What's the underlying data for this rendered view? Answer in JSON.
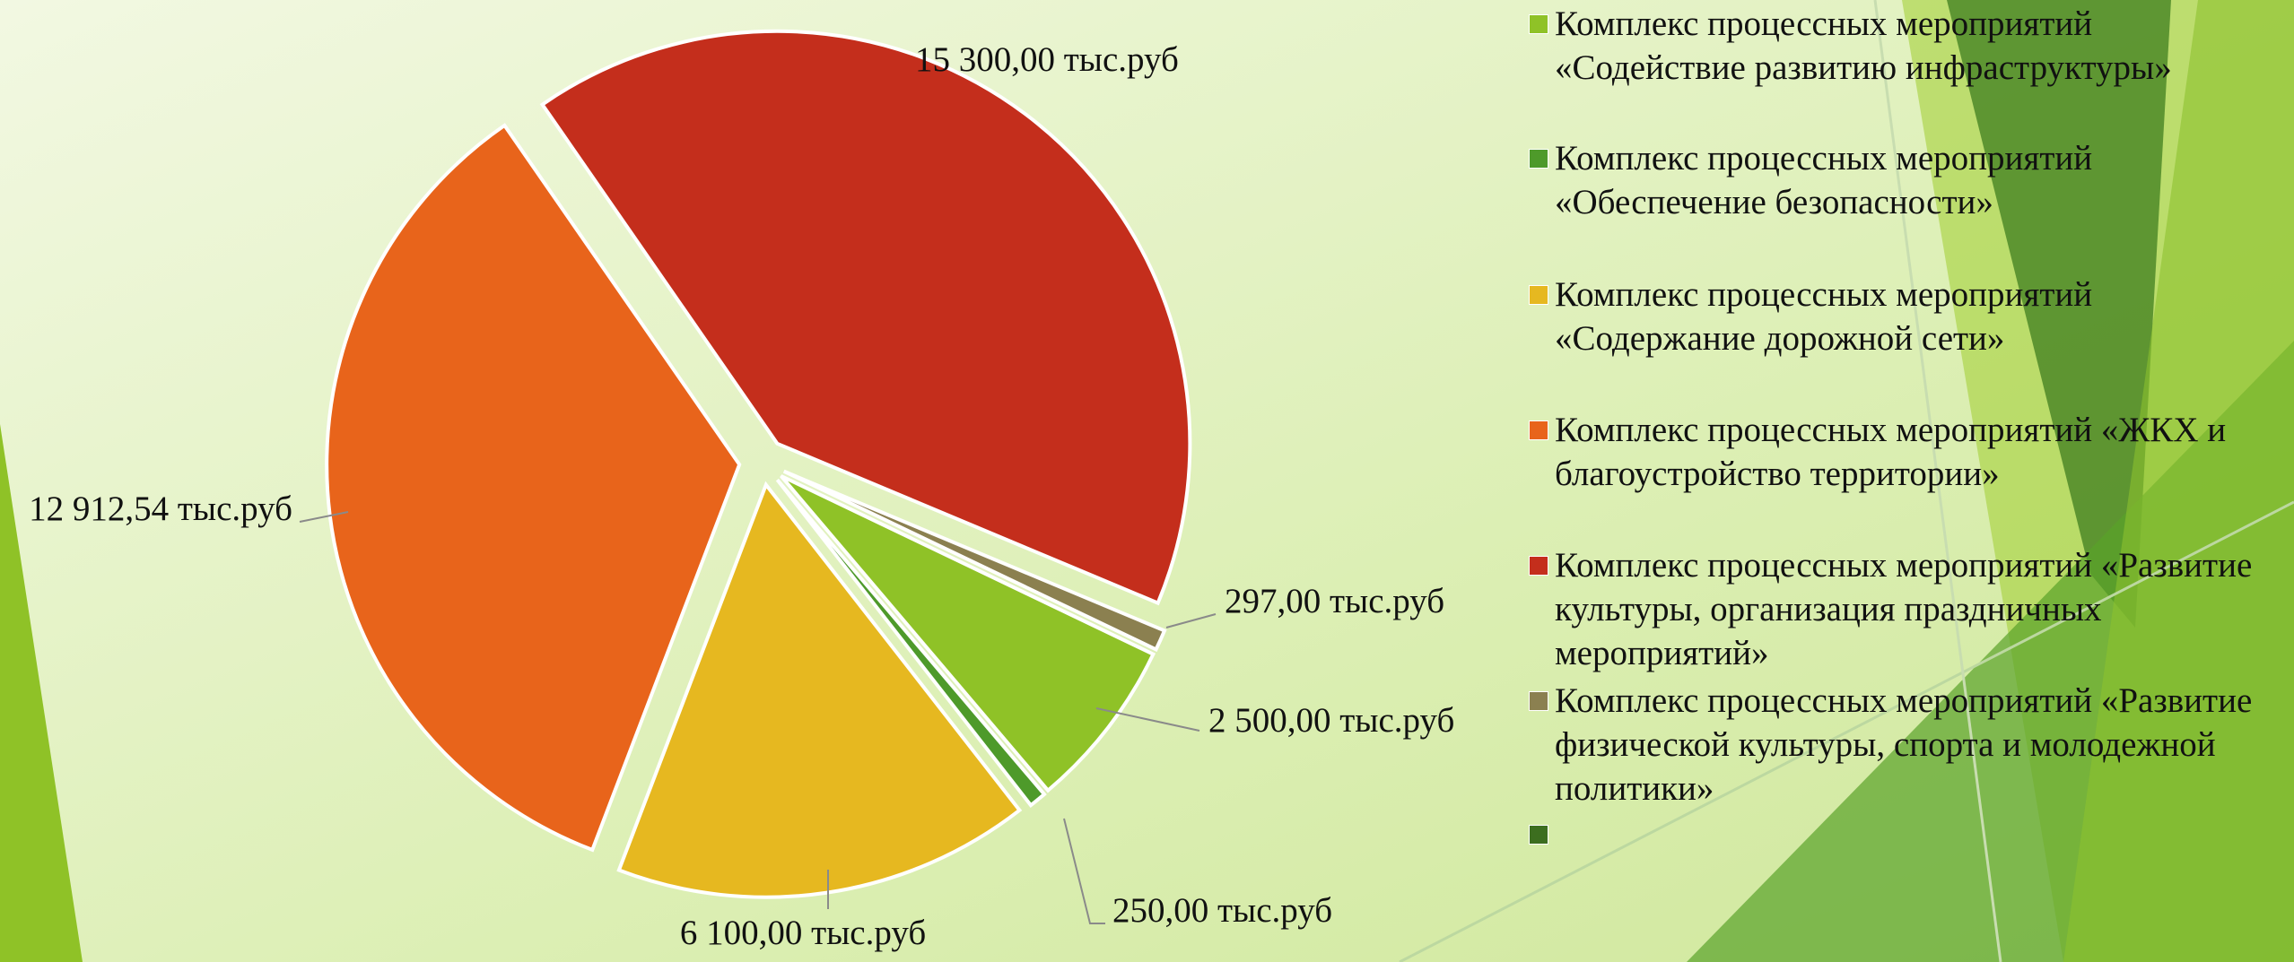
{
  "chart_data": {
    "type": "pie",
    "categories": [
      "Комплекс процессных мероприятий «Содействие развитию инфраструктуры»",
      "Комплекс процессных мероприятий «Обеспечение безопасности»",
      "Комплекс процессных мероприятий «Содержание дорожной сети»",
      "Комплекс процессных мероприятий «ЖКХ и благоустройство территории»",
      "Комплекс процессных мероприятий «Развитие культуры, организация праздничных мероприятий»",
      "Комплекс процессных мероприятий «Развитие физической культуры, спорта и молодежной политики»",
      null
    ],
    "values": [
      2500,
      250,
      6100,
      12912.54,
      15300,
      297,
      null
    ],
    "value_labels": [
      "2 500,00 тыс.руб",
      "250,00 тыс.руб",
      "6 100,00 тыс.руб",
      "12 912,54 тыс.руб",
      "15 300,00 тыс.руб",
      "297,00 тыс.руб",
      null
    ],
    "colors": [
      "#8fc227",
      "#4e9a2a",
      "#e6b820",
      "#e8641b",
      "#c42e1c",
      "#8b8050",
      "#3c6e1f"
    ],
    "legend": "right"
  }
}
